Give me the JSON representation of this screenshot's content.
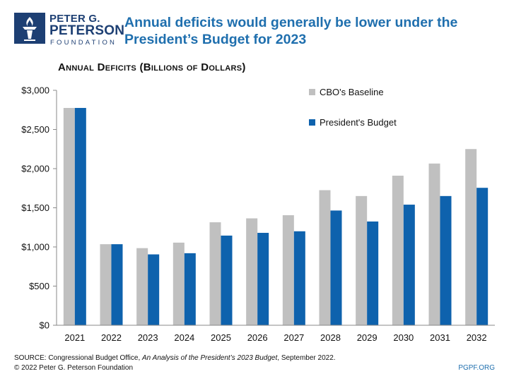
{
  "logo": {
    "line1": "PETER G.",
    "line2": "PETERSON",
    "line3": "FOUNDATION"
  },
  "title_line1": "Annual deficits would generally be lower under the",
  "title_line2": "President’s Budget for 2023",
  "subtitle": "Annual Deficits (Billions of Dollars)",
  "footer": {
    "source_prefix": "SOURCE: Congressional Budget Office, ",
    "source_italic": "An Analysis of the President’s 2023 Budget",
    "source_suffix": ", September 2022.",
    "copyright": "© 2022 Peter G. Peterson Foundation",
    "url": "PGPF.ORG"
  },
  "colors": {
    "baseline": "#c0c0c0",
    "budget": "#0e62ad",
    "axis": "#888888",
    "brand": "#1d3f73"
  },
  "chart_data": {
    "type": "bar",
    "title": "Annual deficits would generally be lower under the President’s Budget for 2023",
    "ylabel": "Annual Deficits (Billions of Dollars)",
    "xlabel": "",
    "categories": [
      "2021",
      "2022",
      "2023",
      "2024",
      "2025",
      "2026",
      "2027",
      "2028",
      "2029",
      "2030",
      "2031",
      "2032"
    ],
    "series": [
      {
        "name": "CBO's Baseline",
        "values": [
          2775,
          1035,
          985,
          1055,
          1315,
          1365,
          1405,
          1725,
          1650,
          1910,
          2065,
          2250
        ]
      },
      {
        "name": "President's Budget",
        "values": [
          2775,
          1035,
          905,
          920,
          1145,
          1180,
          1200,
          1465,
          1325,
          1540,
          1650,
          1755
        ]
      }
    ],
    "ylim": [
      0,
      3000
    ],
    "yticks": [
      0,
      500,
      1000,
      1500,
      2000,
      2500,
      3000
    ],
    "ytick_labels": [
      "$0",
      "$500",
      "$1,000",
      "$1,500",
      "$2,000",
      "$2,500",
      "$3,000"
    ],
    "legend_position": "top-right",
    "grid": false
  }
}
